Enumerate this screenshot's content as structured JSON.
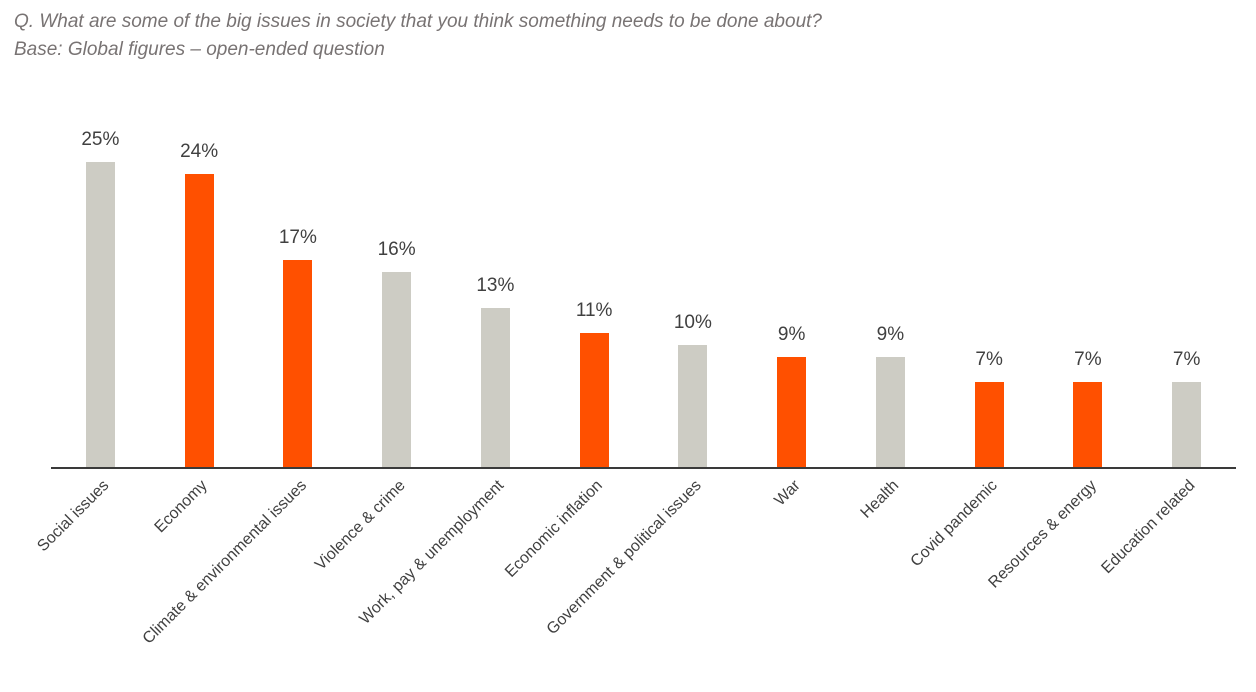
{
  "header": {
    "question": "Q. What are some of the big issues in society that you think something needs to be done about?",
    "base": "Base: Global figures – open-ended question"
  },
  "chart_data": {
    "type": "bar",
    "title": "",
    "xlabel": "",
    "ylabel": "",
    "categories": [
      "Social issues",
      "Economy",
      "Climate & environmental issues",
      "Violence & crime",
      "Work, pay & unemployment",
      "Economic inflation",
      "Government & political issues",
      "War",
      "Health",
      "Covid pandemic",
      "Resources & energy",
      "Education related"
    ],
    "values": [
      25,
      24,
      17,
      16,
      13,
      11,
      10,
      9,
      9,
      7,
      7,
      7
    ],
    "value_labels": [
      "25%",
      "24%",
      "17%",
      "16%",
      "13%",
      "11%",
      "10%",
      "9%",
      "9%",
      "7%",
      "7%",
      "7%"
    ],
    "data_label_suffix": "%",
    "bar_colors": [
      "gray",
      "orange",
      "orange",
      "gray",
      "gray",
      "orange",
      "gray",
      "orange",
      "gray",
      "orange",
      "orange",
      "gray"
    ],
    "colors": {
      "orange": "#FF5000",
      "gray": "#CDCCC4",
      "axis": "#3A3A3A",
      "data_label": "#404040",
      "category_label": "#404040",
      "header_text": "#787373"
    },
    "ylim": [
      0,
      27
    ],
    "grid": false,
    "legend": false,
    "x_tick_rotation_deg": 45,
    "data_labels_shown": true,
    "y_axis_shown": false
  }
}
